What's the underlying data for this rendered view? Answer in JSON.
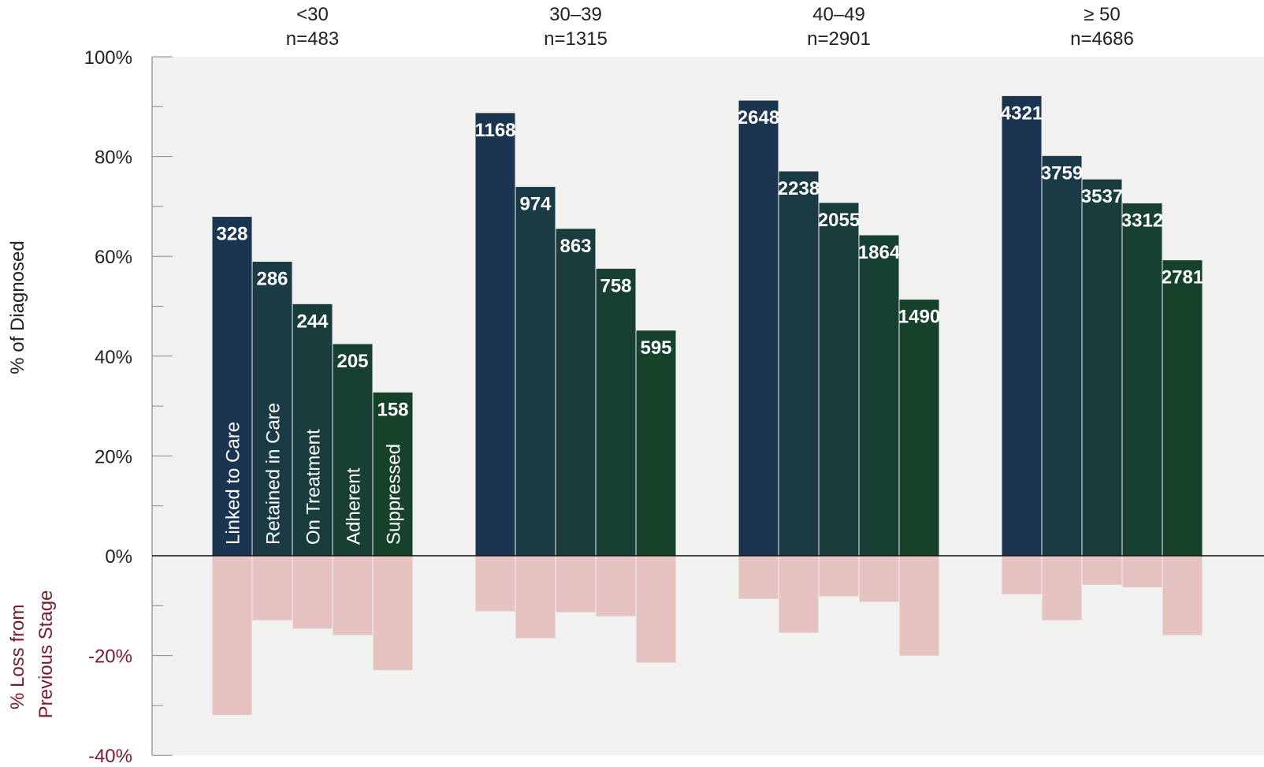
{
  "chart_data": {
    "type": "bar",
    "ylabel_positive": "% of Diagnosed",
    "ylabel_negative": [
      "% Loss from",
      "Previous Stage"
    ],
    "ylim": [
      -40,
      100
    ],
    "yticks": [
      {
        "value": 100,
        "label": "100%"
      },
      {
        "value": 80,
        "label": "80%"
      },
      {
        "value": 60,
        "label": "60%"
      },
      {
        "value": 40,
        "label": "40%"
      },
      {
        "value": 20,
        "label": "20%"
      },
      {
        "value": 0,
        "label": "0%"
      },
      {
        "value": -20,
        "label": "-20%"
      },
      {
        "value": -40,
        "label": "-40%"
      }
    ],
    "stages": [
      "Linked to Care",
      "Retained in Care",
      "On Treatment",
      "Adherent",
      "Suppressed"
    ],
    "stage_colors": [
      "#1b3550",
      "#1a3a45",
      "#193d3c",
      "#173f33",
      "#16422c"
    ],
    "loss_color": "#e4c3c0",
    "plot_background": "#f1f1f0",
    "groups": [
      {
        "name": "<30",
        "n_label": "n=483",
        "counts": [
          "328",
          "286",
          "244",
          "205",
          "158"
        ],
        "percent_of_diagnosed": [
          68,
          59,
          50.5,
          42.5,
          32.8
        ],
        "loss_from_previous": [
          -32,
          -13,
          -14.7,
          -16,
          -23
        ]
      },
      {
        "name": "30–39",
        "n_label": "n=1315",
        "counts": [
          "1168",
          "974",
          "863",
          "758",
          "595"
        ],
        "percent_of_diagnosed": [
          88.8,
          74,
          65.6,
          57.6,
          45.2
        ],
        "loss_from_previous": [
          -11.2,
          -16.6,
          -11.4,
          -12.2,
          -21.5
        ]
      },
      {
        "name": "40–49",
        "n_label": "n=2901",
        "counts": [
          "2648",
          "2238",
          "2055",
          "1864",
          "1490"
        ],
        "percent_of_diagnosed": [
          91.3,
          77.1,
          70.8,
          64.3,
          51.4
        ],
        "loss_from_previous": [
          -8.7,
          -15.5,
          -8.2,
          -9.3,
          -20.1
        ]
      },
      {
        "name": "≥ 50",
        "n_label": "n=4686",
        "counts": [
          "4321",
          "3759",
          "3537",
          "3312",
          "2781"
        ],
        "percent_of_diagnosed": [
          92.2,
          80.2,
          75.5,
          70.7,
          59.3
        ],
        "loss_from_previous": [
          -7.8,
          -13,
          -5.9,
          -6.4,
          -16
        ]
      }
    ]
  }
}
